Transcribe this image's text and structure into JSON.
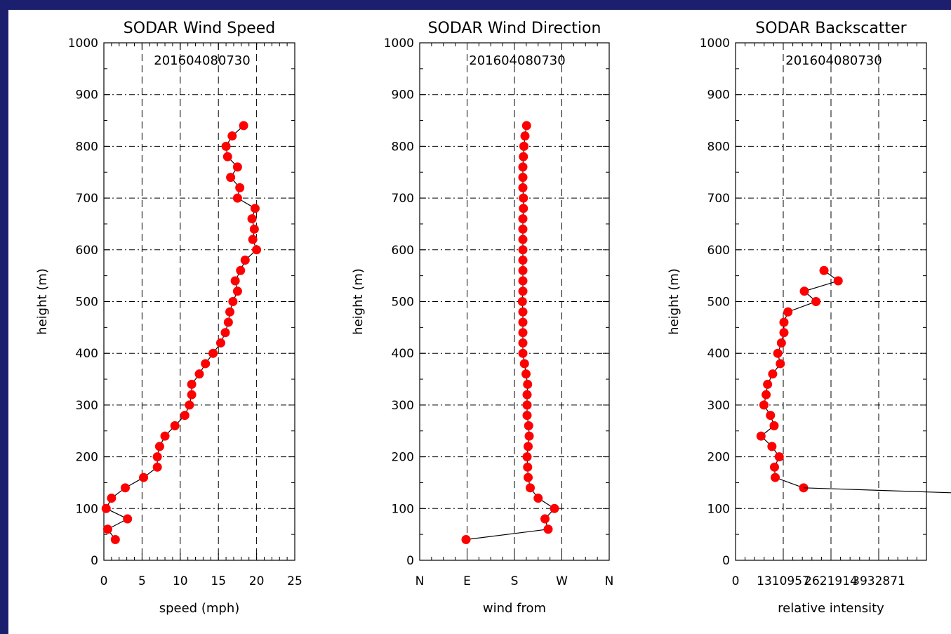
{
  "chart_data": [
    {
      "type": "line",
      "title": "SODAR Wind Speed",
      "subtitle": "201604080730",
      "xlabel": "speed (mph)",
      "ylabel": "height (m)",
      "xlim": [
        0,
        25
      ],
      "ylim": [
        0,
        1000
      ],
      "x_ticks": [
        "0",
        "5",
        "10",
        "15",
        "20",
        "25"
      ],
      "y_ticks": [
        "0",
        "100",
        "200",
        "300",
        "400",
        "500",
        "600",
        "700",
        "800",
        "900",
        "1000"
      ],
      "grid": true,
      "series": [
        {
          "color": "#ff0000",
          "points": [
            [
              1.5,
              40
            ],
            [
              0.5,
              60
            ],
            [
              3.1,
              80
            ],
            [
              0.3,
              100
            ],
            [
              1.0,
              120
            ],
            [
              2.8,
              140
            ],
            [
              5.2,
              160
            ],
            [
              7.0,
              180
            ],
            [
              7.0,
              200
            ],
            [
              7.3,
              220
            ],
            [
              8.0,
              240
            ],
            [
              9.3,
              260
            ],
            [
              10.6,
              280
            ],
            [
              11.2,
              300
            ],
            [
              11.5,
              320
            ],
            [
              11.5,
              340
            ],
            [
              12.5,
              360
            ],
            [
              13.3,
              380
            ],
            [
              14.3,
              400
            ],
            [
              15.3,
              420
            ],
            [
              15.9,
              440
            ],
            [
              16.3,
              460
            ],
            [
              16.5,
              480
            ],
            [
              16.9,
              500
            ],
            [
              17.5,
              520
            ],
            [
              17.2,
              540
            ],
            [
              17.9,
              560
            ],
            [
              18.5,
              580
            ],
            [
              20.0,
              600
            ],
            [
              19.5,
              620
            ],
            [
              19.7,
              640
            ],
            [
              19.4,
              660
            ],
            [
              19.8,
              680
            ],
            [
              17.5,
              700
            ],
            [
              17.8,
              720
            ],
            [
              16.6,
              740
            ],
            [
              17.5,
              760
            ],
            [
              16.2,
              780
            ],
            [
              16.0,
              800
            ],
            [
              16.8,
              820
            ],
            [
              18.3,
              840
            ]
          ]
        }
      ]
    },
    {
      "type": "line",
      "title": "SODAR Wind Direction",
      "subtitle": "201604080730",
      "xlabel": "wind from",
      "ylabel": "height (m)",
      "x_range_degrees": [
        0,
        360
      ],
      "xlim": [
        0,
        360
      ],
      "ylim": [
        0,
        1000
      ],
      "x_ticks": [
        "N",
        "E",
        "S",
        "W",
        "N"
      ],
      "y_ticks": [
        "0",
        "100",
        "200",
        "300",
        "400",
        "500",
        "600",
        "700",
        "800",
        "900",
        "1000"
      ],
      "grid": true,
      "series": [
        {
          "color": "#ff0000",
          "points": [
            [
              88,
              40
            ],
            [
              244,
              60
            ],
            [
              238,
              80
            ],
            [
              256,
              100
            ],
            [
              225,
              120
            ],
            [
              210,
              140
            ],
            [
              206,
              160
            ],
            [
              205,
              180
            ],
            [
              204,
              200
            ],
            [
              206,
              220
            ],
            [
              208,
              240
            ],
            [
              207,
              260
            ],
            [
              204,
              280
            ],
            [
              204,
              300
            ],
            [
              204,
              320
            ],
            [
              205,
              340
            ],
            [
              202,
              360
            ],
            [
              199,
              380
            ],
            [
              196,
              400
            ],
            [
              196,
              420
            ],
            [
              196,
              440
            ],
            [
              196,
              460
            ],
            [
              196,
              480
            ],
            [
              195,
              500
            ],
            [
              196,
              520
            ],
            [
              196,
              540
            ],
            [
              196,
              560
            ],
            [
              196,
              580
            ],
            [
              196,
              600
            ],
            [
              196,
              620
            ],
            [
              196,
              640
            ],
            [
              196,
              660
            ],
            [
              197,
              680
            ],
            [
              197,
              700
            ],
            [
              196,
              720
            ],
            [
              196,
              740
            ],
            [
              196,
              760
            ],
            [
              197,
              780
            ],
            [
              198,
              800
            ],
            [
              200,
              820
            ],
            [
              203,
              840
            ]
          ]
        }
      ]
    },
    {
      "type": "line",
      "title": "SODAR Backscatter",
      "subtitle": "201604080730",
      "xlabel": "relative intensity",
      "ylabel": "height (m)",
      "xlim": [
        0,
        5243828
      ],
      "ylim": [
        0,
        1000
      ],
      "x_ticks": [
        "0",
        "1310957",
        "2621914",
        "3932871"
      ],
      "y_ticks": [
        "0",
        "100",
        "200",
        "300",
        "400",
        "500",
        "600",
        "700",
        "800",
        "900",
        "1000"
      ],
      "grid": true,
      "series": [
        {
          "color": "#ff0000",
          "points": [
            [
              1870000,
              140
            ],
            [
              1090000,
              160
            ],
            [
              1070000,
              180
            ],
            [
              1200000,
              200
            ],
            [
              1000000,
              220
            ],
            [
              700000,
              240
            ],
            [
              1060000,
              260
            ],
            [
              960000,
              280
            ],
            [
              780000,
              300
            ],
            [
              840000,
              320
            ],
            [
              880000,
              340
            ],
            [
              1020000,
              360
            ],
            [
              1230000,
              380
            ],
            [
              1160000,
              400
            ],
            [
              1260000,
              420
            ],
            [
              1330000,
              440
            ],
            [
              1330000,
              460
            ],
            [
              1440000,
              480
            ],
            [
              2210000,
              500
            ],
            [
              1890000,
              520
            ],
            [
              2820000,
              540
            ],
            [
              2430000,
              560
            ]
          ]
        }
      ]
    }
  ]
}
